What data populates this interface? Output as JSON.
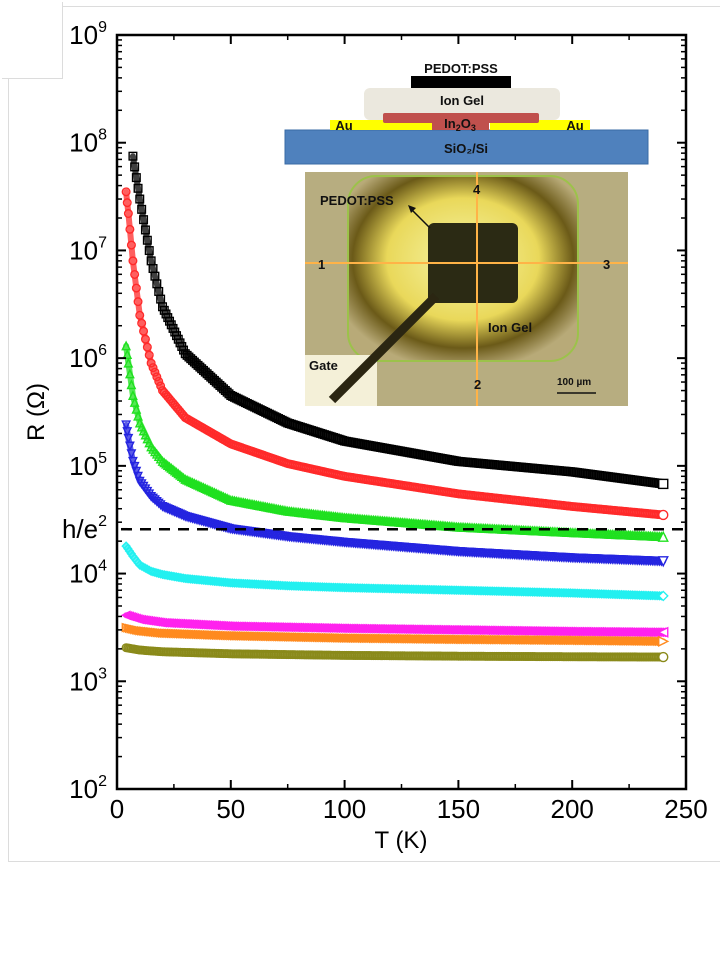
{
  "chart_data": {
    "type": "scatter",
    "title": "",
    "xlabel": "T (K)",
    "ylabel": "R (Ω)",
    "xlim": [
      0,
      250
    ],
    "ylim": [
      100,
      1000000000
    ],
    "yscale": "log",
    "xticks": [
      0,
      50,
      100,
      150,
      200,
      250
    ],
    "xtick_labels": [
      "0",
      "50",
      "100",
      "150",
      "200",
      "250"
    ],
    "yticks": [
      {
        "base": "10",
        "exp": "2",
        "value": 100
      },
      {
        "base": "10",
        "exp": "3",
        "value": 1000
      },
      {
        "base": "10",
        "exp": "4",
        "value": 10000
      },
      {
        "base": "10",
        "exp": "5",
        "value": 100000
      },
      {
        "base": "10",
        "exp": "6",
        "value": 1000000
      },
      {
        "base": "10",
        "exp": "7",
        "value": 10000000
      },
      {
        "base": "10",
        "exp": "8",
        "value": 100000000
      },
      {
        "base": "10",
        "exp": "9",
        "value": 1000000000
      }
    ],
    "reference_line": {
      "label_base": "h/e",
      "label_exp": "2",
      "value": 25813,
      "style": "dashed",
      "color": "#000000"
    },
    "grid": false,
    "series": [
      {
        "name": "black",
        "marker": "square",
        "color": "#000000",
        "T": [
          7,
          10,
          15,
          20,
          30,
          50,
          75,
          100,
          150,
          200,
          240
        ],
        "R": [
          75000000,
          30000000,
          8000000,
          3000000,
          1100000,
          450000,
          250000,
          170000,
          110000,
          88000,
          68000
        ]
      },
      {
        "name": "red",
        "marker": "circle",
        "color": "#ff2a2a",
        "T": [
          4,
          5,
          7,
          10,
          15,
          20,
          30,
          50,
          75,
          100,
          150,
          200,
          240
        ],
        "R": [
          35000000,
          22000000,
          8000000,
          2500000,
          900000,
          500000,
          280000,
          160000,
          105000,
          80000,
          55000,
          42000,
          35000
        ]
      },
      {
        "name": "green",
        "marker": "triangle-up",
        "color": "#1fe01f",
        "T": [
          4,
          5,
          7,
          10,
          15,
          20,
          30,
          50,
          75,
          100,
          150,
          200,
          240
        ],
        "R": [
          1300000,
          900000,
          450000,
          250000,
          150000,
          110000,
          75000,
          48000,
          38000,
          33000,
          27000,
          24000,
          22000
        ]
      },
      {
        "name": "blue",
        "marker": "triangle-down",
        "color": "#2424e0",
        "T": [
          4,
          5,
          7,
          10,
          15,
          20,
          30,
          50,
          75,
          100,
          150,
          200,
          240
        ],
        "R": [
          240000,
          180000,
          110000,
          72000,
          52000,
          42000,
          34000,
          26000,
          22000,
          19500,
          16000,
          14000,
          13000
        ]
      },
      {
        "name": "cyan",
        "marker": "diamond",
        "color": "#22f0f0",
        "T": [
          4,
          7,
          10,
          15,
          20,
          30,
          50,
          75,
          100,
          150,
          200,
          240
        ],
        "R": [
          18000,
          14500,
          12000,
          10500,
          9800,
          9000,
          8200,
          7700,
          7400,
          7000,
          6600,
          6200
        ]
      },
      {
        "name": "magenta",
        "marker": "triangle-left",
        "color": "#ff22ee",
        "T": [
          4,
          10,
          20,
          50,
          100,
          150,
          200,
          240
        ],
        "R": [
          4100,
          3750,
          3500,
          3250,
          3100,
          3000,
          2900,
          2850
        ]
      },
      {
        "name": "orange",
        "marker": "triangle-right",
        "color": "#ff8a1f",
        "T": [
          4,
          10,
          20,
          50,
          100,
          150,
          200,
          240
        ],
        "R": [
          3150,
          2950,
          2800,
          2650,
          2520,
          2450,
          2400,
          2350
        ]
      },
      {
        "name": "olive",
        "marker": "hexagon",
        "color": "#8a8a1a",
        "T": [
          4,
          10,
          20,
          50,
          100,
          150,
          200,
          240
        ],
        "R": [
          2050,
          1950,
          1880,
          1800,
          1740,
          1710,
          1690,
          1680
        ]
      }
    ],
    "legend": "none"
  },
  "inset": {
    "schematic": {
      "top_label": "PEDOT:PSS",
      "gel_label": "Ion Gel",
      "channel_label_base": "In",
      "channel_sub1": "2",
      "channel_mid": "O",
      "channel_sub2": "3",
      "contact_left": "Au",
      "contact_right": "Au",
      "substrate_label": "SiO₂/Si",
      "colors": {
        "pedot": "#000000",
        "gel": "#ebe8de",
        "channel": "#c0504d",
        "contact": "#ffff00",
        "substrate": "#4f81bd"
      }
    },
    "micrograph": {
      "pedot_label": "PEDOT:PSS",
      "probe_labels": [
        "1",
        "2",
        "3",
        "4"
      ],
      "gel_label": "Ion Gel",
      "gate_label": "Gate",
      "scale_bar": "100 µm"
    }
  }
}
